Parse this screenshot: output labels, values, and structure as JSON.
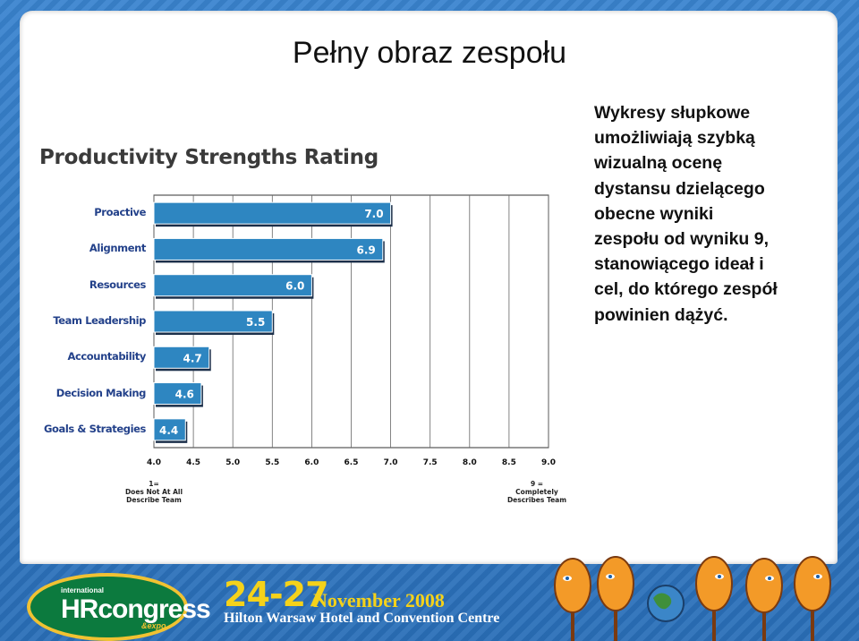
{
  "slide": {
    "title": "Pełny obraz zespołu",
    "side_text": "Wykresy słupkowe\numożliwiają szybką\nwizualną ocenę\ndystansu dzielącego\nobecne wyniki\nzespołu  od wyniku 9,\nstanowiącego ideał i\ncel, do którego zespół\npowinien dążyć."
  },
  "chart_data": {
    "type": "bar",
    "orientation": "horizontal",
    "title": "Productivity Strengths Rating",
    "categories": [
      "Proactive",
      "Alignment",
      "Resources",
      "Team Leadership",
      "Accountability",
      "Decision Making",
      "Goals & Strategies"
    ],
    "values": [
      7.0,
      6.9,
      6.0,
      5.5,
      4.7,
      4.6,
      4.4
    ],
    "value_labels": [
      "7.0",
      "6.9",
      "6.0",
      "5.5",
      "4.7",
      "4.6",
      "4.4"
    ],
    "xlim": [
      4.0,
      9.0
    ],
    "xticks": [
      "4.0",
      "4.5",
      "5.0",
      "5.5",
      "6.0",
      "6.5",
      "7.0",
      "7.5",
      "8.0",
      "8.5",
      "9.0"
    ],
    "anchor_low": "1=\nDoes Not At All\nDescribe Team",
    "anchor_high": "9 =\nCompletely\nDescribes Team",
    "grid": true,
    "bar_color": "#2e86c1"
  },
  "footer": {
    "logo_small": "international",
    "logo_main": "HRcongress",
    "logo_expo": "&expo",
    "dates": "24-27",
    "month": "November 2008",
    "venue": "Hilton Warsaw Hotel and Convention Centre"
  },
  "colors": {
    "frame": "#2f78c4",
    "accent_yellow": "#f5d21a",
    "logo_green": "#0c7a3e"
  }
}
